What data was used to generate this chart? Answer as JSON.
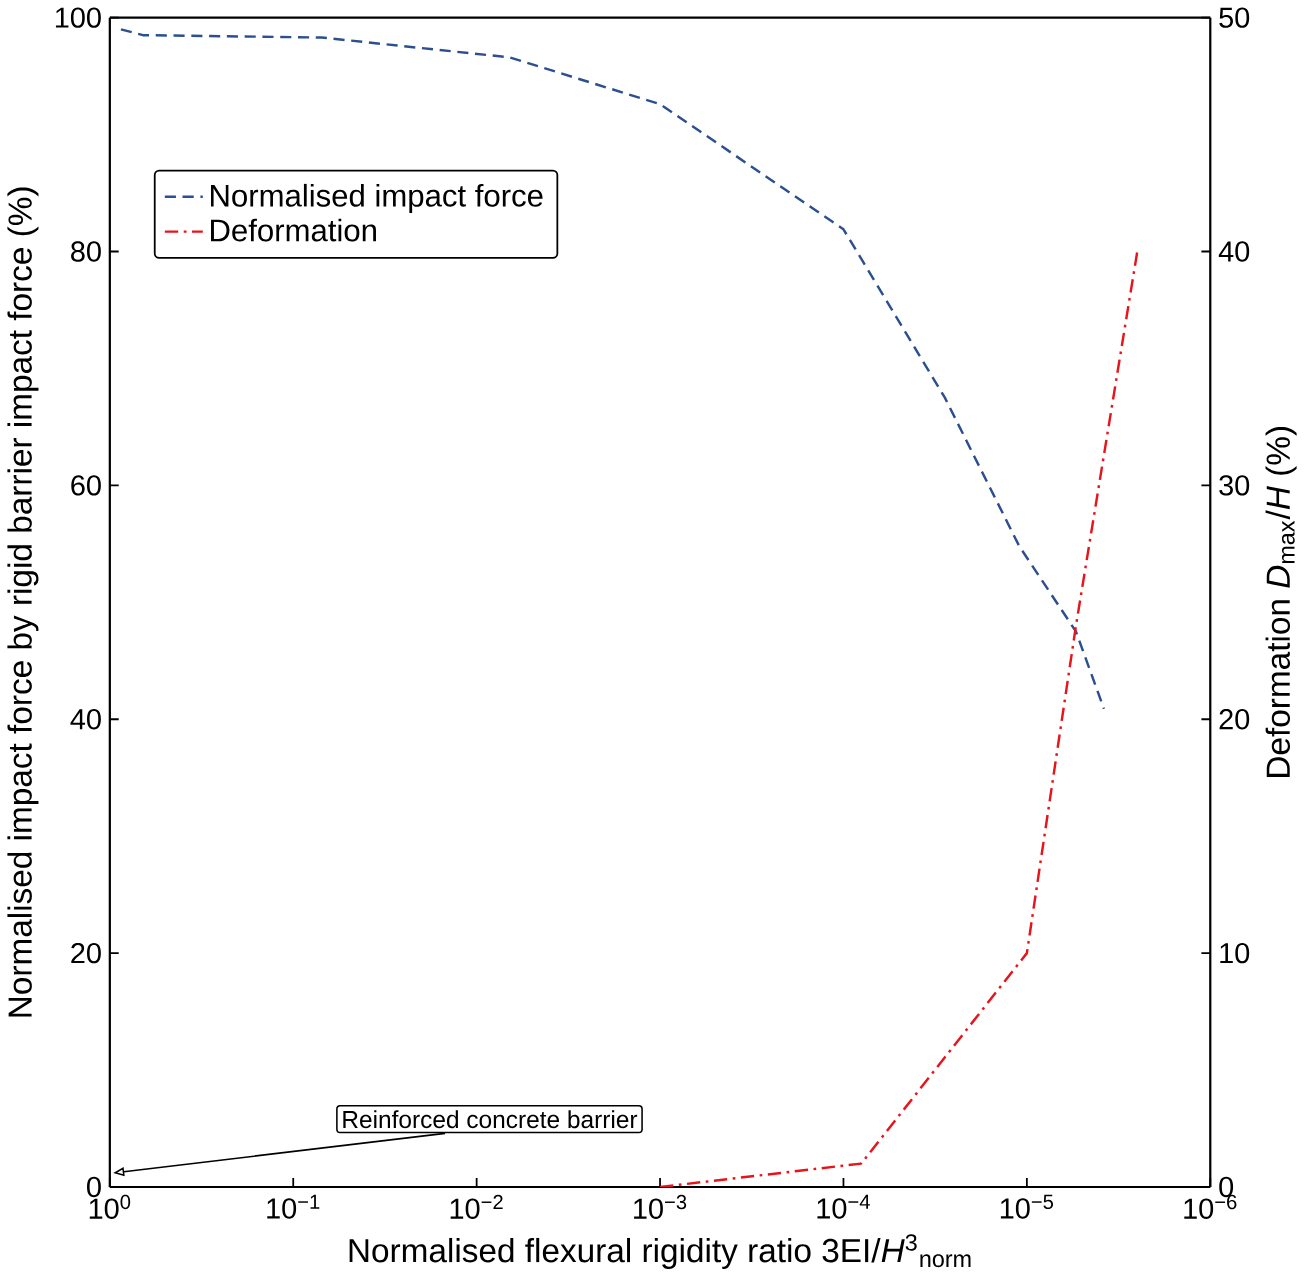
{
  "chart_data": {
    "type": "line",
    "xlabel": "Normalised flexural rigidity ratio 3EI/*H*$^{3}$$_{norm}$",
    "ylabel": "Normalised impact force by rigid barrier impact force (%)",
    "y2label": "Deformation *D*$_{max}$/*H* (%)",
    "log": "x",
    "xlim": [
      1,
      1e-06
    ],
    "xticks": [
      {
        "value": 1,
        "label": "10$^{0}$"
      },
      {
        "value": 0.1,
        "label": "10$^{−1}$"
      },
      {
        "value": 0.01,
        "label": "10$^{−2}$"
      },
      {
        "value": 0.001,
        "label": "10$^{−3}$"
      },
      {
        "value": 0.0001,
        "label": "10$^{−4}$"
      },
      {
        "value": 1e-05,
        "label": "10$^{−5}$"
      },
      {
        "value": 1e-06,
        "label": "10$^{−6}$"
      }
    ],
    "ylim": [
      0,
      100
    ],
    "yticks": [
      0,
      20,
      40,
      60,
      80,
      100
    ],
    "y2lim": [
      0,
      50
    ],
    "y2ticks": [
      0,
      10,
      20,
      30,
      40,
      50
    ],
    "legend": "top left",
    "grid": false,
    "series": [
      {
        "name": "Normalised impact force",
        "color": "#2b4f8f",
        "line_style": "dashed",
        "x": [
          0.87,
          0.66,
          0.07,
          0.0066,
          0.001,
          0.0001,
          2.8e-05,
          1.1e-05,
          5.4e-06,
          3.8e-06
        ],
        "values": [
          99,
          98.5,
          98.3,
          96.6,
          92.6,
          81.9,
          67.5,
          54.8,
          47.5,
          40.9
        ]
      },
      {
        "name": "Deformation",
        "color": "#e8141c",
        "line_style": "dashdot",
        "axis": "y2",
        "x": [
          0.001,
          8e-05,
          1e-05,
          5.4e-06,
          2.5e-06
        ],
        "values": [
          0,
          1,
          10,
          24,
          40
        ]
      }
    ],
    "annotations": [
      "Reinforced concrete barrier"
    ]
  }
}
